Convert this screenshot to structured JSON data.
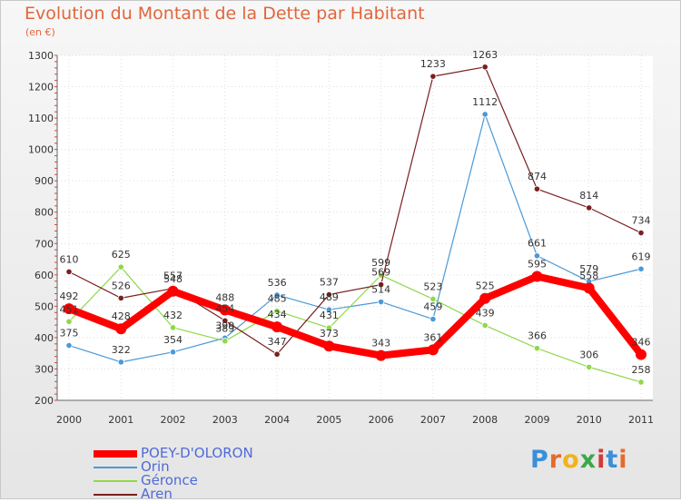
{
  "title": "Evolution du Montant de la Dette par Habitant",
  "unit": "(en €)",
  "logo": {
    "text": "Proxiti",
    "letter_colors": [
      "#3a8fd8",
      "#e86a2a",
      "#f2b21d",
      "#3aa84a",
      "#d23a3a",
      "#3a8fd8",
      "#e86a2a"
    ]
  },
  "chart_data": {
    "type": "line",
    "title": "Evolution du Montant de la Dette par Habitant",
    "ylabel": "(en €)",
    "xlabel": "",
    "x": [
      "2000",
      "2001",
      "2002",
      "2003",
      "2004",
      "2005",
      "2006",
      "2007",
      "2008",
      "2009",
      "2010",
      "2011"
    ],
    "ylim": [
      200,
      1300
    ],
    "yticks": [
      "200",
      "300",
      "400",
      "500",
      "600",
      "700",
      "800",
      "900",
      "1000",
      "1100",
      "1200",
      "1300"
    ],
    "grid": true,
    "legend_position": "bottom-left",
    "series": [
      {
        "name": "POEY-D'OLORON",
        "color": "#ff0000",
        "values": [
          492,
          428,
          548,
          488,
          434,
          373,
          343,
          361,
          525,
          595,
          558,
          346
        ]
      },
      {
        "name": "Orin",
        "color": "#4b99d6",
        "values": [
          375,
          322,
          354,
          399,
          536,
          489,
          514,
          459,
          1112,
          661,
          579,
          619
        ]
      },
      {
        "name": "Géronce",
        "color": "#8ed84a",
        "values": [
          451,
          625,
          432,
          389,
          485,
          431,
          599,
          523,
          439,
          366,
          306,
          258
        ]
      },
      {
        "name": "Aren",
        "color": "#7a1f1f",
        "values": [
          610,
          526,
          557,
          454,
          347,
          537,
          569,
          1233,
          1263,
          874,
          814,
          734
        ]
      }
    ]
  }
}
